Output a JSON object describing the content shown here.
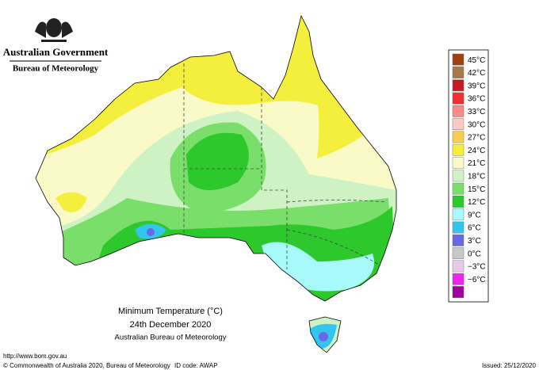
{
  "header": {
    "government": "Australian Government",
    "agency": "Bureau of Meteorology"
  },
  "legend": {
    "labels": [
      "45°C",
      "42°C",
      "39°C",
      "36°C",
      "33°C",
      "30°C",
      "27°C",
      "24°C",
      "21°C",
      "18°C",
      "15°C",
      "12°C",
      "9°C",
      "6°C",
      "3°C",
      "0°C",
      "−3°C",
      "−6°C"
    ],
    "colors": [
      "#a2410f",
      "#a8784a",
      "#c81a22",
      "#f03030",
      "#f88a8a",
      "#fcc8c8",
      "#f8cc50",
      "#f4ee3c",
      "#fafac8",
      "#cef2c4",
      "#7ade6a",
      "#2cc82c",
      "#a8fafa",
      "#34c4f0",
      "#6868e4",
      "#c8c8c8",
      "#e8c8e8",
      "#f024f0",
      "#a000a0"
    ]
  },
  "title": {
    "line1": "Minimum Temperature (°C)",
    "line2": "24th December 2020",
    "line3": "Australian Bureau of Meteorology"
  },
  "footer": {
    "url": "http://www.bom.gov.au",
    "copyright": "© Commonwealth of Australia 2020, Bureau of Meteorology",
    "id_code": "ID code: AWAP",
    "issued": "Issued: 25/12/2020"
  }
}
